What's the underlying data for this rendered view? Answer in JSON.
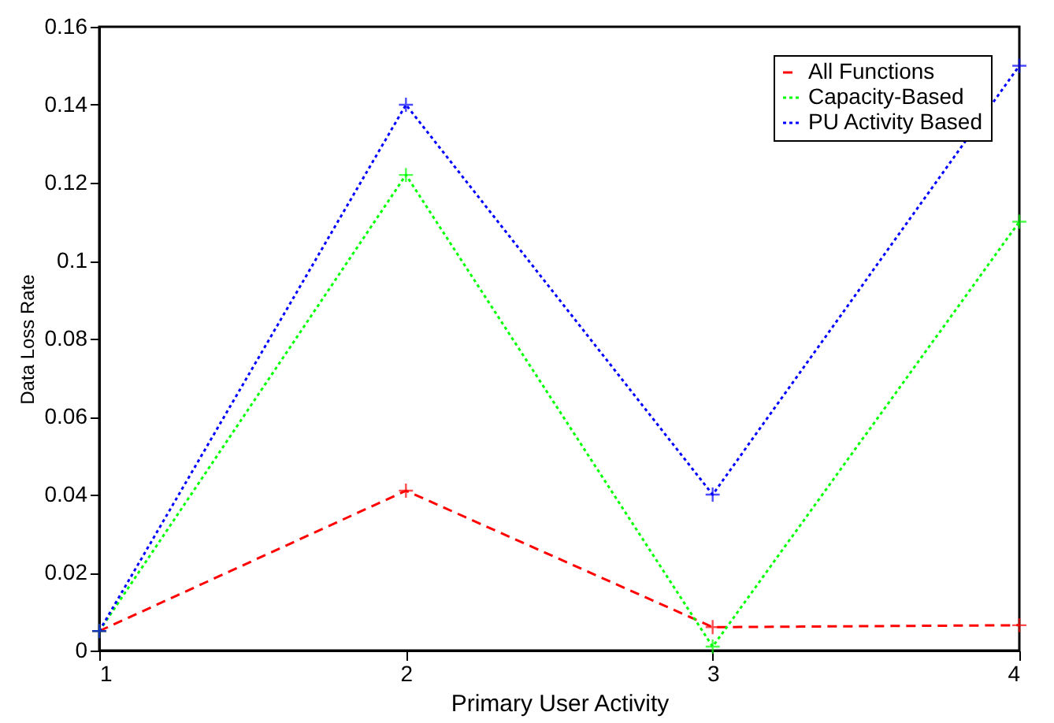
{
  "chart_data": {
    "type": "line",
    "xlabel": "Primary User Activity",
    "ylabel": "Data Loss Rate",
    "x": [
      1,
      2,
      3,
      4
    ],
    "xlim": [
      1,
      4
    ],
    "xticks": [
      1,
      2,
      3,
      4
    ],
    "ylim": [
      0,
      0.16
    ],
    "yticks": [
      0,
      0.02,
      0.04,
      0.06,
      0.08,
      0.1,
      0.12,
      0.14,
      0.16
    ],
    "series": [
      {
        "name": "All Functions",
        "color": "#ff0000",
        "line_style": "dashed",
        "values": [
          0.005,
          0.041,
          0.006,
          0.0065
        ]
      },
      {
        "name": "Capacity-Based",
        "color": "#00ff00",
        "line_style": "dotted",
        "values": [
          0.005,
          0.122,
          0.001,
          0.11
        ]
      },
      {
        "name": "PU Activity Based",
        "color": "#0000ff",
        "line_style": "dotted",
        "values": [
          0.005,
          0.14,
          0.04,
          0.15
        ]
      }
    ],
    "marker": "cross",
    "legend": "top right",
    "grid": false
  }
}
